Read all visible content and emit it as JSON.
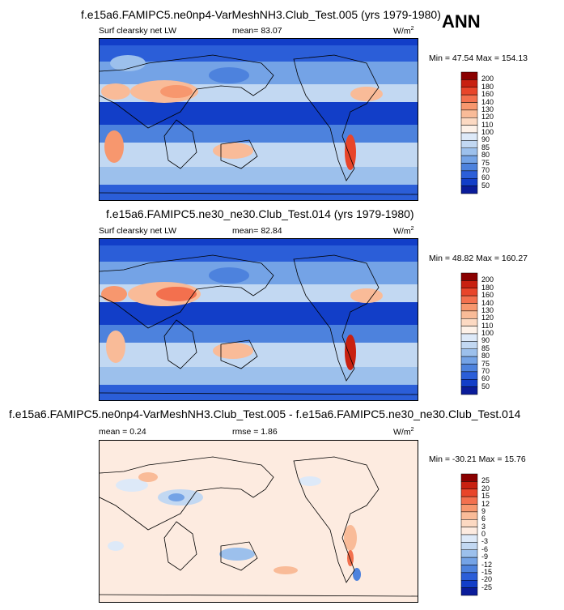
{
  "season": "ANN",
  "panels": [
    {
      "title": "f.e15a6.FAMIPC5.ne0np4-VarMeshNH3.Club_Test.005 (yrs 1979-1980)",
      "left_label": "Surf clearsky net LW",
      "mean_text": "mean=  83.07",
      "units": "W/m",
      "units_sup": "2",
      "minmax": "Min =  47.54 Max = 154.13",
      "colorbar": {
        "levels": [
          "200",
          "180",
          "160",
          "140",
          "130",
          "120",
          "110",
          "100",
          "90",
          "85",
          "80",
          "75",
          "70",
          "60",
          "50"
        ],
        "colors": [
          "#8a0000",
          "#c82010",
          "#e8452a",
          "#f3704e",
          "#f7976e",
          "#f9bb98",
          "#fcd9c2",
          "#fdf1e8",
          "#dde9f8",
          "#c2d8f2",
          "#9cc0ec",
          "#74a3e6",
          "#4d82dd",
          "#2b5ed8",
          "#123ec8",
          "#0a1c9a"
        ]
      }
    },
    {
      "title": "f.e15a6.FAMIPC5.ne30_ne30.Club_Test.014 (yrs 1979-1980)",
      "left_label": "Surf clearsky net LW",
      "mean_text": "mean=  82.84",
      "units": "W/m",
      "units_sup": "2",
      "minmax": "Min =  48.82 Max = 160.27",
      "colorbar": {
        "levels": [
          "200",
          "180",
          "160",
          "140",
          "130",
          "120",
          "110",
          "100",
          "90",
          "85",
          "80",
          "75",
          "70",
          "60",
          "50"
        ],
        "colors": [
          "#8a0000",
          "#c82010",
          "#e8452a",
          "#f3704e",
          "#f7976e",
          "#f9bb98",
          "#fcd9c2",
          "#fdf1e8",
          "#dde9f8",
          "#c2d8f2",
          "#9cc0ec",
          "#74a3e6",
          "#4d82dd",
          "#2b5ed8",
          "#123ec8",
          "#0a1c9a"
        ]
      }
    },
    {
      "title": "f.e15a6.FAMIPC5.ne0np4-VarMeshNH3.Club_Test.005 - f.e15a6.FAMIPC5.ne30_ne30.Club_Test.014",
      "left_label": "mean =   0.24",
      "mean_text": "rmse =   1.86",
      "units": "W/m",
      "units_sup": "2",
      "minmax": "Min = -30.21 Max =  15.76",
      "colorbar": {
        "levels": [
          "25",
          "20",
          "15",
          "12",
          "9",
          "6",
          "3",
          "0",
          "-3",
          "-6",
          "-9",
          "-12",
          "-15",
          "-20",
          "-25"
        ],
        "colors": [
          "#8a0000",
          "#c82010",
          "#e8452a",
          "#f3704e",
          "#f7976e",
          "#f9bb98",
          "#fcd9c2",
          "#fdebe0",
          "#dde9f8",
          "#c2d8f2",
          "#9cc0ec",
          "#74a3e6",
          "#4d82dd",
          "#2b5ed8",
          "#123ec8",
          "#0a1c9a"
        ]
      }
    }
  ],
  "chart_data": [
    {
      "type": "heatmap",
      "title": "f.e15a6.FAMIPC5.ne0np4-VarMeshNH3.Club_Test.005 (yrs 1979-1980)",
      "variable": "Surf clearsky net LW",
      "season": "ANN",
      "mean": 83.07,
      "min": 47.54,
      "max": 154.13,
      "units": "W/m2",
      "contour_levels": [
        50,
        60,
        70,
        75,
        80,
        85,
        90,
        100,
        110,
        120,
        130,
        140,
        160,
        180,
        200
      ]
    },
    {
      "type": "heatmap",
      "title": "f.e15a6.FAMIPC5.ne30_ne30.Club_Test.014 (yrs 1979-1980)",
      "variable": "Surf clearsky net LW",
      "season": "ANN",
      "mean": 82.84,
      "min": 48.82,
      "max": 160.27,
      "units": "W/m2",
      "contour_levels": [
        50,
        60,
        70,
        75,
        80,
        85,
        90,
        100,
        110,
        120,
        130,
        140,
        160,
        180,
        200
      ]
    },
    {
      "type": "heatmap",
      "title": "f.e15a6.FAMIPC5.ne0np4-VarMeshNH3.Club_Test.005 - f.e15a6.FAMIPC5.ne30_ne30.Club_Test.014",
      "mean": 0.24,
      "rmse": 1.86,
      "min": -30.21,
      "max": 15.76,
      "units": "W/m2",
      "contour_levels": [
        -25,
        -20,
        -15,
        -12,
        -9,
        -6,
        -3,
        0,
        3,
        6,
        9,
        12,
        15,
        20,
        25
      ]
    }
  ]
}
